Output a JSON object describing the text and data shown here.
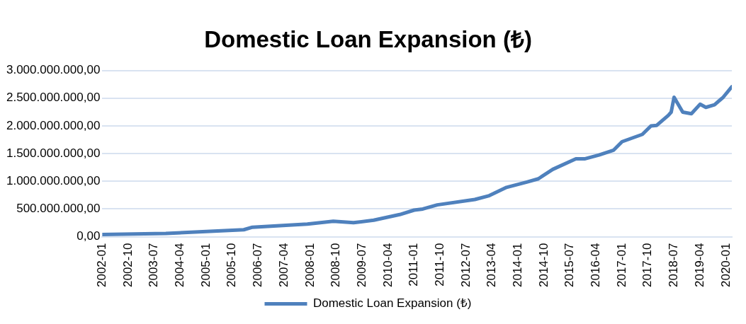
{
  "chart_data": {
    "type": "line",
    "title": "Domestic Loan Expansion (₺)",
    "x": [
      "2002-01",
      "2003-11",
      "2006-02",
      "2006-05",
      "2007-12",
      "2008-09",
      "2009-04",
      "2009-11",
      "2010-08",
      "2011-01",
      "2011-04",
      "2011-09",
      "2012-10",
      "2013-03",
      "2013-09",
      "2014-04",
      "2014-08",
      "2015-01",
      "2015-09",
      "2015-12",
      "2016-05",
      "2016-10",
      "2017-01",
      "2017-08",
      "2017-11",
      "2018-01",
      "2018-05",
      "2018-06",
      "2018-07",
      "2018-10",
      "2019-01",
      "2019-04",
      "2019-06",
      "2019-09",
      "2019-12",
      "2020-03"
    ],
    "series": [
      {
        "name": "Domestic Loan Expansion (₺)",
        "color": "#4f81bd",
        "values": [
          40000000,
          60000000,
          126000000,
          172000000,
          229000000,
          280000000,
          253000000,
          298000000,
          400000000,
          480000000,
          500000000,
          574000000,
          672000000,
          741000000,
          891000000,
          986000000,
          1045000000,
          1216000000,
          1405000000,
          1405000000,
          1474000000,
          1560000000,
          1715000000,
          1846000000,
          2000000000,
          2010000000,
          2190000000,
          2248000000,
          2516000000,
          2248000000,
          2219000000,
          2391000000,
          2334000000,
          2380000000,
          2516000000,
          2706000000
        ]
      }
    ],
    "xlim": [
      "2002-01",
      "2020-03"
    ],
    "xticks": [
      "2002-01",
      "2002-10",
      "2003-07",
      "2004-04",
      "2005-01",
      "2005-10",
      "2006-07",
      "2007-04",
      "2008-01",
      "2008-10",
      "2009-07",
      "2010-04",
      "2011-01",
      "2011-10",
      "2012-07",
      "2013-04",
      "2014-01",
      "2014-10",
      "2015-07",
      "2016-04",
      "2017-01",
      "2017-10",
      "2018-07",
      "2019-04",
      "2020-01"
    ],
    "ylim": [
      0,
      3000000000
    ],
    "yticks": [
      {
        "value": 0,
        "label": "0,00"
      },
      {
        "value": 500000000,
        "label": "500.000.000,00"
      },
      {
        "value": 1000000000,
        "label": "1.000.000.000,00"
      },
      {
        "value": 1500000000,
        "label": "1.500.000.000,00"
      },
      {
        "value": 2000000000,
        "label": "2.000.000.000,00"
      },
      {
        "value": 2500000000,
        "label": "2.500.000.000,00"
      },
      {
        "value": 3000000000,
        "label": "3.000.000.000,00"
      }
    ],
    "grid": "y",
    "legend": "bottom",
    "marker": "none",
    "line_style": "solid"
  }
}
